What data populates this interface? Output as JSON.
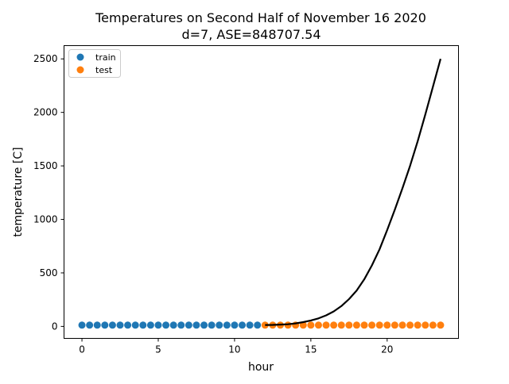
{
  "chart_data": {
    "type": "scatter",
    "title": "Temperatures on Second Half of November 16 2020",
    "subtitle": "d=7, ASE=848707.54",
    "xlabel": "hour",
    "ylabel": "temperature [C]",
    "xlim": [
      -1.175,
      24.675
    ],
    "ylim": [
      -112,
      2624
    ],
    "xticks": [
      0,
      5,
      10,
      15,
      20
    ],
    "xtick_labels": [
      "0",
      "5",
      "10",
      "15",
      "20"
    ],
    "yticks": [
      0,
      500,
      1000,
      1500,
      2000,
      2500
    ],
    "ytick_labels": [
      "0",
      "500",
      "1000",
      "1500",
      "2000",
      "2500"
    ],
    "grid": false,
    "legend_position": "upper-left",
    "series": [
      {
        "name": "train",
        "kind": "scatter",
        "color": "#1f77b4",
        "x": [
          0,
          0.5,
          1,
          1.5,
          2,
          2.5,
          3,
          3.5,
          4,
          4.5,
          5,
          5.5,
          6,
          6.5,
          7,
          7.5,
          8,
          8.5,
          9,
          9.5,
          10,
          10.5,
          11,
          11.5
        ],
        "y": [
          12,
          12,
          12,
          12,
          12,
          12,
          12,
          12,
          12,
          12,
          12,
          12,
          12,
          12,
          12,
          12,
          12,
          12,
          12,
          12,
          12,
          12,
          12,
          12
        ]
      },
      {
        "name": "test",
        "kind": "scatter",
        "color": "#ff7f0e",
        "x": [
          12,
          12.5,
          13,
          13.5,
          14,
          14.5,
          15,
          15.5,
          16,
          16.5,
          17,
          17.5,
          18,
          18.5,
          19,
          19.5,
          20,
          20.5,
          21,
          21.5,
          22,
          22.5,
          23,
          23.5
        ],
        "y": [
          12,
          12,
          12,
          12,
          12,
          12,
          12,
          12,
          12,
          12,
          12,
          12,
          12,
          12,
          12,
          12,
          12,
          12,
          12,
          12,
          12,
          12,
          12,
          12
        ]
      },
      {
        "kind": "line",
        "color": "#000000",
        "x": [
          12,
          12.5,
          13,
          13.5,
          14,
          14.5,
          15,
          15.5,
          16,
          16.5,
          17,
          17.5,
          18,
          18.5,
          19,
          19.5,
          20,
          20.5,
          21,
          21.5,
          22,
          22.5,
          23,
          23.5
        ],
        "y": [
          13,
          14,
          17,
          20,
          28,
          40,
          55,
          75,
          103,
          140,
          190,
          255,
          335,
          440,
          570,
          720,
          900,
          1090,
          1290,
          1500,
          1730,
          1980,
          2240,
          2500
        ]
      }
    ]
  }
}
